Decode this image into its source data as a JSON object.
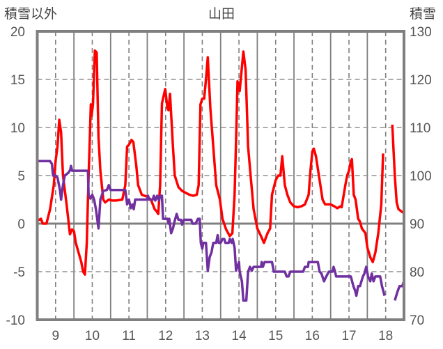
{
  "chart_data": {
    "type": "line",
    "title": "山田",
    "ylabel_left": "積雪以外",
    "ylabel_right": "積雪",
    "xlim": [
      8.5,
      18.5
    ],
    "ylim_left": [
      -10,
      20
    ],
    "ylim_right": [
      70,
      130
    ],
    "x_ticks": [
      "9",
      "10",
      "11",
      "12",
      "13",
      "14",
      "15",
      "16",
      "17",
      "18"
    ],
    "y_ticks_left": [
      "20",
      "15",
      "10",
      "5",
      "0",
      "-5",
      "-10"
    ],
    "y_ticks_right": [
      "130",
      "120",
      "110",
      "100",
      "90",
      "80",
      "70"
    ],
    "grid": true,
    "series": [
      {
        "name": "積雪以外",
        "axis": "left",
        "color": "#ff0000",
        "points": [
          [
            8.5,
            0.3
          ],
          [
            8.6,
            0.5
          ],
          [
            8.65,
            0
          ],
          [
            8.75,
            0
          ],
          [
            8.85,
            1.5
          ],
          [
            8.95,
            4
          ],
          [
            9.0,
            6.5
          ],
          [
            9.05,
            8
          ],
          [
            9.1,
            10.8
          ],
          [
            9.15,
            9.5
          ],
          [
            9.2,
            5
          ],
          [
            9.3,
            2
          ],
          [
            9.39,
            -1.1
          ],
          [
            9.45,
            -0.6
          ],
          [
            9.5,
            -0.8
          ],
          [
            9.55,
            -2
          ],
          [
            9.7,
            -4
          ],
          [
            9.75,
            -5
          ],
          [
            9.8,
            -5.3
          ],
          [
            9.85,
            -2
          ],
          [
            9.9,
            5
          ],
          [
            9.93,
            8.5
          ],
          [
            9.96,
            12.4
          ],
          [
            9.98,
            11.2
          ],
          [
            10.02,
            12.4
          ],
          [
            10.07,
            18
          ],
          [
            10.12,
            17.8
          ],
          [
            10.17,
            9
          ],
          [
            10.22,
            5.5
          ],
          [
            10.3,
            2.5
          ],
          [
            10.35,
            2.2
          ],
          [
            10.45,
            2.5
          ],
          [
            10.55,
            2.4
          ],
          [
            10.65,
            2.4
          ],
          [
            10.82,
            2.5
          ],
          [
            10.9,
            4
          ],
          [
            10.95,
            8
          ],
          [
            11.0,
            8.2
          ],
          [
            11.07,
            8.7
          ],
          [
            11.12,
            8.5
          ],
          [
            11.2,
            6
          ],
          [
            11.25,
            4
          ],
          [
            11.35,
            3
          ],
          [
            11.5,
            2.8
          ],
          [
            11.6,
            2.5
          ],
          [
            11.7,
            1.5
          ],
          [
            11.75,
            1.3
          ],
          [
            11.8,
            1
          ],
          [
            11.85,
            4
          ],
          [
            11.9,
            12.5
          ],
          [
            11.99,
            14
          ],
          [
            12.05,
            12
          ],
          [
            12.08,
            11.8
          ],
          [
            12.12,
            13.5
          ],
          [
            12.2,
            8
          ],
          [
            12.25,
            5
          ],
          [
            12.35,
            3.8
          ],
          [
            12.45,
            3.4
          ],
          [
            12.55,
            3.2
          ],
          [
            12.65,
            3.0
          ],
          [
            12.75,
            2.9
          ],
          [
            12.85,
            3.0
          ],
          [
            12.9,
            4
          ],
          [
            12.95,
            12.4
          ],
          [
            13.0,
            13
          ],
          [
            13.05,
            13
          ],
          [
            13.1,
            15
          ],
          [
            13.15,
            17.3
          ],
          [
            13.22,
            12
          ],
          [
            13.3,
            8
          ],
          [
            13.38,
            4
          ],
          [
            13.48,
            2.5
          ],
          [
            13.55,
            0.5
          ],
          [
            13.65,
            -0.6
          ],
          [
            13.75,
            -1.3
          ],
          [
            13.82,
            -1
          ],
          [
            13.88,
            3
          ],
          [
            13.93,
            10
          ],
          [
            13.96,
            14.8
          ],
          [
            14.02,
            13.8
          ],
          [
            14.12,
            17.9
          ],
          [
            14.18,
            16
          ],
          [
            14.25,
            8
          ],
          [
            14.33,
            4.5
          ],
          [
            14.4,
            1.5
          ],
          [
            14.5,
            -0.5
          ],
          [
            14.6,
            -1.3
          ],
          [
            14.68,
            -2
          ],
          [
            14.78,
            -1
          ],
          [
            14.85,
            -0.5
          ],
          [
            14.9,
            3
          ],
          [
            15.0,
            4.5
          ],
          [
            15.07,
            5
          ],
          [
            15.13,
            5
          ],
          [
            15.18,
            7
          ],
          [
            15.25,
            4
          ],
          [
            15.32,
            3
          ],
          [
            15.4,
            2.2
          ],
          [
            15.5,
            1.8
          ],
          [
            15.6,
            1.7
          ],
          [
            15.7,
            1.8
          ],
          [
            15.8,
            2
          ],
          [
            15.9,
            3
          ],
          [
            15.95,
            5.5
          ],
          [
            16.0,
            7.5
          ],
          [
            16.04,
            7.8
          ],
          [
            16.1,
            7
          ],
          [
            16.2,
            4.5
          ],
          [
            16.28,
            2.5
          ],
          [
            16.35,
            2.0
          ],
          [
            16.5,
            2.0
          ],
          [
            16.6,
            1.8
          ],
          [
            16.68,
            1.6
          ],
          [
            16.77,
            1.8
          ],
          [
            16.8,
            1.7
          ],
          [
            16.9,
            4
          ],
          [
            16.95,
            5
          ],
          [
            17.0,
            5.5
          ],
          [
            17.05,
            6.5
          ],
          [
            17.08,
            6.7
          ],
          [
            17.13,
            3
          ],
          [
            17.18,
            2.5
          ],
          [
            17.25,
            0.5
          ],
          [
            17.3,
            0.2
          ],
          [
            17.35,
            -0.5
          ],
          [
            17.45,
            -1
          ],
          [
            17.5,
            -2.5
          ],
          [
            17.58,
            -3.5
          ],
          [
            17.65,
            -4
          ],
          [
            17.72,
            -3
          ],
          [
            17.8,
            -1
          ],
          [
            17.88,
            2
          ],
          [
            17.93,
            7.3
          ],
          null,
          [
            18.18,
            10.3
          ],
          [
            18.25,
            5
          ],
          [
            18.3,
            2.2
          ],
          [
            18.35,
            1.5
          ],
          [
            18.45,
            1.2
          ],
          [
            18.5,
            1.1
          ]
        ]
      },
      {
        "name": "積雪",
        "axis": "right",
        "color": "#7030a0",
        "points": [
          [
            8.5,
            103
          ],
          [
            8.85,
            103
          ],
          [
            8.9,
            102.4
          ],
          [
            8.93,
            100
          ],
          [
            9.0,
            100
          ],
          [
            9.05,
            99.6
          ],
          [
            9.12,
            97
          ],
          [
            9.15,
            95
          ],
          [
            9.2,
            98
          ],
          [
            9.25,
            100
          ],
          [
            9.35,
            100.6
          ],
          [
            9.4,
            101.2
          ],
          [
            9.42,
            102
          ],
          [
            9.45,
            101
          ],
          [
            9.88,
            101
          ],
          [
            9.9,
            96
          ],
          [
            9.95,
            95.2
          ],
          [
            10.0,
            96
          ],
          [
            10.05,
            95
          ],
          [
            10.1,
            93
          ],
          [
            10.17,
            89
          ],
          [
            10.22,
            95
          ],
          [
            10.3,
            96.8
          ],
          [
            10.4,
            97
          ],
          [
            10.45,
            98
          ],
          [
            10.5,
            97
          ],
          [
            10.9,
            97
          ],
          [
            10.95,
            94
          ],
          [
            11.0,
            95
          ],
          [
            11.05,
            93.2
          ],
          [
            11.1,
            94
          ],
          [
            11.13,
            93
          ],
          [
            11.17,
            95
          ],
          [
            11.5,
            95
          ],
          [
            11.52,
            95.8
          ],
          [
            11.55,
            95
          ],
          [
            11.65,
            95
          ],
          [
            11.68,
            95.8
          ],
          [
            11.72,
            94.8
          ],
          [
            11.77,
            95.8
          ],
          [
            11.82,
            94.8
          ],
          [
            11.85,
            95.8
          ],
          [
            11.9,
            95.8
          ],
          [
            11.93,
            91
          ],
          [
            12.05,
            91
          ],
          [
            12.08,
            90
          ],
          [
            12.1,
            91
          ],
          [
            12.15,
            88
          ],
          [
            12.2,
            89
          ],
          [
            12.25,
            90.6
          ],
          [
            12.3,
            92
          ],
          [
            12.35,
            90.8
          ],
          [
            12.42,
            90.8
          ],
          [
            12.45,
            89.8
          ],
          [
            12.5,
            90.8
          ],
          [
            12.7,
            90.8
          ],
          [
            12.73,
            90
          ],
          [
            12.82,
            90
          ],
          [
            12.88,
            91
          ],
          [
            12.93,
            91
          ],
          [
            12.96,
            86
          ],
          [
            13.0,
            84.8
          ],
          [
            13.03,
            86
          ],
          [
            13.1,
            86
          ],
          [
            13.15,
            80.2
          ],
          [
            13.2,
            83
          ],
          [
            13.25,
            84
          ],
          [
            13.3,
            86
          ],
          [
            13.38,
            86
          ],
          [
            13.42,
            87.6
          ],
          [
            13.45,
            86
          ],
          [
            13.5,
            86
          ],
          [
            13.55,
            86.8
          ],
          [
            13.6,
            86.8
          ],
          [
            13.63,
            86
          ],
          [
            13.72,
            86
          ],
          [
            13.75,
            86.8
          ],
          [
            13.8,
            86
          ],
          [
            13.83,
            86.8
          ],
          [
            13.88,
            85
          ],
          [
            13.92,
            80.2
          ],
          [
            14.0,
            82
          ],
          [
            14.02,
            80
          ],
          [
            14.08,
            78
          ],
          [
            14.12,
            74
          ],
          [
            14.2,
            74
          ],
          [
            14.25,
            80
          ],
          [
            14.3,
            81
          ],
          [
            14.35,
            80.2
          ],
          [
            14.4,
            81
          ],
          [
            14.6,
            81
          ],
          [
            14.62,
            82
          ],
          [
            14.65,
            81
          ],
          [
            14.7,
            82
          ],
          [
            14.9,
            82
          ],
          [
            14.95,
            80
          ],
          [
            15.25,
            80
          ],
          [
            15.3,
            79
          ],
          [
            15.35,
            79
          ],
          [
            15.4,
            80
          ],
          [
            15.75,
            80
          ],
          [
            15.8,
            81
          ],
          [
            15.88,
            81
          ],
          [
            15.9,
            82
          ],
          [
            16.15,
            82
          ],
          [
            16.2,
            80
          ],
          [
            16.25,
            79.6
          ],
          [
            16.32,
            78
          ],
          [
            16.38,
            79
          ],
          [
            16.45,
            80
          ],
          [
            16.55,
            80
          ],
          [
            16.58,
            81
          ],
          [
            16.62,
            80
          ],
          [
            16.65,
            79
          ],
          [
            17.05,
            79
          ],
          [
            17.12,
            77
          ],
          [
            17.17,
            76
          ],
          [
            17.2,
            75
          ],
          [
            17.25,
            77
          ],
          [
            17.3,
            77
          ],
          [
            17.38,
            79
          ],
          [
            17.42,
            79.6
          ],
          [
            17.47,
            81
          ],
          [
            17.52,
            79
          ],
          [
            17.58,
            78
          ],
          [
            17.62,
            79.6
          ],
          [
            17.67,
            78
          ],
          [
            17.72,
            79
          ],
          [
            17.85,
            79
          ],
          [
            17.9,
            77
          ],
          [
            17.97,
            75
          ],
          null,
          [
            18.25,
            74
          ],
          [
            18.33,
            76
          ],
          [
            18.38,
            77
          ],
          [
            18.45,
            77
          ],
          [
            18.5,
            78
          ]
        ]
      }
    ]
  }
}
